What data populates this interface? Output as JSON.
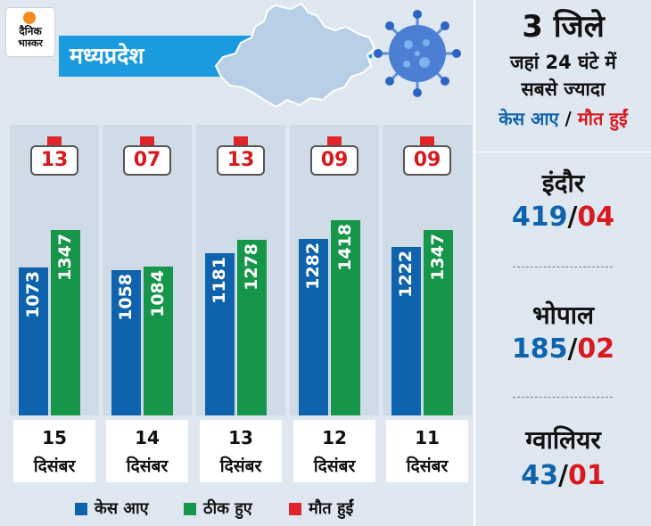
{
  "logo": {
    "line1": "दैनिक",
    "line2": "भास्कर"
  },
  "banner": {
    "title": "मध्यप्रदेश"
  },
  "chart_data": {
    "type": "bar",
    "categories": [
      "15 दिसंबर",
      "14 दिसंबर",
      "13 दिसंबर",
      "12 दिसंबर",
      "11 दिसंबर"
    ],
    "series": [
      {
        "name": "केस आए",
        "values": [
          1073,
          1058,
          1181,
          1282,
          1222
        ]
      },
      {
        "name": "ठीक हुए",
        "values": [
          1347,
          1084,
          1278,
          1418,
          1347
        ]
      },
      {
        "name": "मौत हुईं",
        "values": [
          "13",
          "07",
          "13",
          "09",
          "09"
        ]
      }
    ],
    "dates": [
      {
        "day": "15",
        "month": "दिसंबर"
      },
      {
        "day": "14",
        "month": "दिसंबर"
      },
      {
        "day": "13",
        "month": "दिसंबर"
      },
      {
        "day": "12",
        "month": "दिसंबर"
      },
      {
        "day": "11",
        "month": "दिसंबर"
      }
    ],
    "colors": {
      "cases": "#0f63ad",
      "recovered": "#16964a",
      "deaths": "#e0262b"
    }
  },
  "legend": [
    {
      "label": "केस आए",
      "color": "#0f63ad"
    },
    {
      "label": "ठीक हुए",
      "color": "#16964a"
    },
    {
      "label": "मौत हुईं",
      "color": "#e0262b"
    }
  ],
  "sidebar": {
    "headline": "3 जिले",
    "line1": "जहां 24 घंटे में",
    "line2": "सबसे ज्यादा",
    "label_cases": "केस आए",
    "label_sep": " / ",
    "label_deaths": "मौत हुईं",
    "districts": [
      {
        "name": "इंदौर",
        "cases": "419",
        "deaths": "04"
      },
      {
        "name": "भोपाल",
        "cases": "185",
        "deaths": "02"
      },
      {
        "name": "ग्वालियर",
        "cases": "43",
        "deaths": "01"
      }
    ]
  }
}
